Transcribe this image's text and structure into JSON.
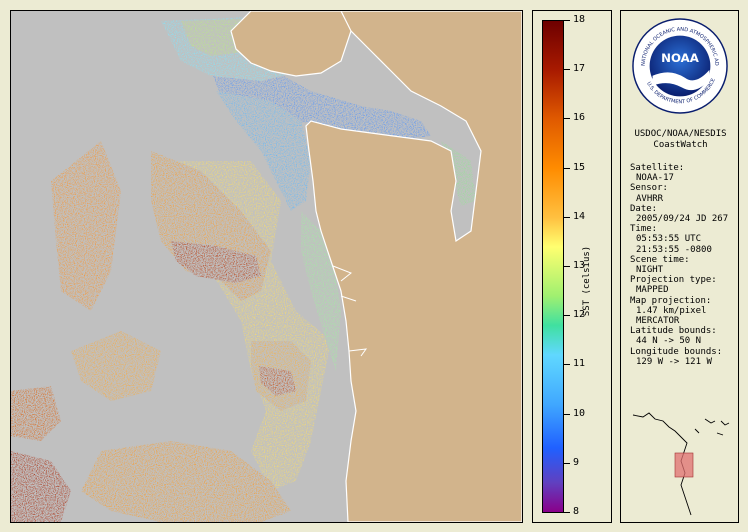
{
  "colorbar": {
    "title": "SST (celsius)",
    "ticks": [
      "18",
      "17",
      "16",
      "15",
      "14",
      "13",
      "12",
      "11",
      "10",
      "9",
      "8"
    ],
    "max": 18,
    "min": 8
  },
  "logo": {
    "text": "NOAA",
    "ring_text": "NATIONAL OCEANIC AND ATMOSPHERIC ADMINISTRATION",
    "ring_text_bottom": "U.S. DEPARTMENT OF COMMERCE"
  },
  "agency": {
    "line1": "USDOC/NOAA/NESDIS",
    "line2": "CoastWatch"
  },
  "metadata": {
    "satellite_label": "Satellite:",
    "satellite": "NOAA-17",
    "sensor_label": "Sensor:",
    "sensor": "AVHRR",
    "date_label": "Date:",
    "date": "2005/09/24 JD 267",
    "time_label": "Time:",
    "time_utc": "05:53:55 UTC",
    "time_local": "21:53:55 -0800",
    "scene_label": "Scene time:",
    "scene": "NIGHT",
    "proj_type_label": "Projection type:",
    "proj_type": "MAPPED",
    "map_proj_label": "Map projection:",
    "resolution": "1.47 km/pixel",
    "projection": "MERCATOR",
    "lat_label": "Latitude bounds:",
    "lat": "44 N -> 50 N",
    "lon_label": "Longitude bounds:",
    "lon": "129 W -> 121 W"
  },
  "colors": {
    "land": "#d2b48c",
    "no_data": "#c0c0c0",
    "background": "#ecebd3"
  }
}
